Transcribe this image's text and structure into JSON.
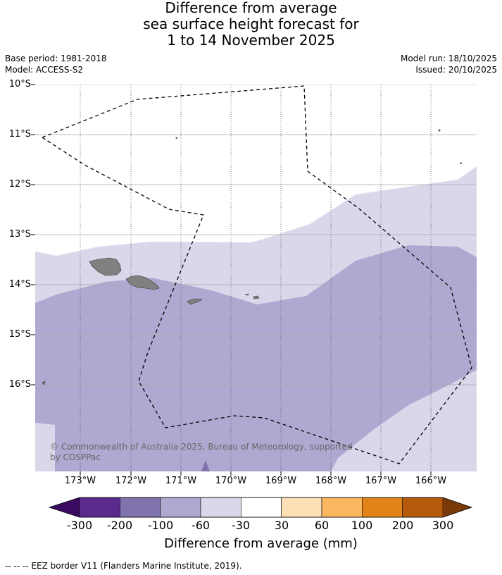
{
  "header": {
    "title_line1": "Difference from average",
    "title_line2": "sea surface height forecast for",
    "title_line3": "1 to 14 November 2025",
    "base_period": "Base period: 1981-2018",
    "model": "Model: ACCESS-S2",
    "model_run": "Model run: 18/10/2025",
    "issued": "Issued: 20/10/2025"
  },
  "map": {
    "lat_labels": [
      "10°S",
      "11°S",
      "12°S",
      "13°S",
      "14°S",
      "15°S",
      "16°S"
    ],
    "lon_labels": [
      "173°W",
      "172°W",
      "171°W",
      "170°W",
      "169°W",
      "168°W",
      "167°W",
      "166°W"
    ],
    "copyright": "© Commonwealth of Australia 2025, Bureau of Meteorology, supported by COSPPac",
    "colors": {
      "band_neg300_neg200": "#5a2a8c",
      "band_neg200_neg100": "#8073ae",
      "band_neg100_neg60": "#b0a8d0",
      "band_neg60_neg30": "#d8d8ea",
      "band_neg30_30": "#ffffff",
      "land": "#808080",
      "eez": "#000000"
    }
  },
  "colorbar": {
    "ticks": [
      "-300",
      "-200",
      "-100",
      "-60",
      "-30",
      "30",
      "60",
      "100",
      "200",
      "300"
    ],
    "colors": [
      "#3a0a62",
      "#5a2a8c",
      "#8073ae",
      "#b0a8d0",
      "#d8d8ea",
      "#ffffff",
      "#fde0b6",
      "#fab861",
      "#e3841a",
      "#b55b0b",
      "#7a3a08"
    ],
    "title": "Difference from average (mm)"
  },
  "legend": {
    "eez_note": "-- -- -- EEZ border V11 (Flanders Marine Institute, 2019)."
  }
}
